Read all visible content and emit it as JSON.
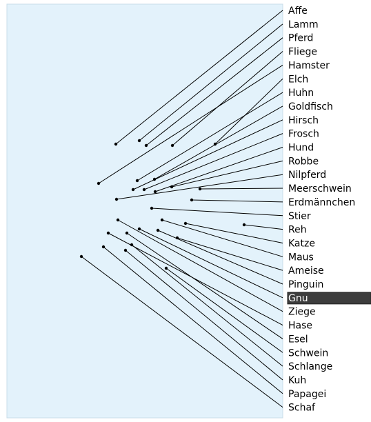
{
  "colors": {
    "panel": "#e3f2fb",
    "panel_border": "#c8dde8",
    "line": "#000000",
    "dot": "#000000",
    "selected_bg": "#3d3d3d",
    "selected_text": "#ffffff"
  },
  "selected_label": "Gnu",
  "labels": [
    "Affe",
    "Lamm",
    "Pferd",
    "Fliege",
    "Hamster",
    "Elch",
    "Huhn",
    "Goldfisch",
    "Hirsch",
    "Frosch",
    "Hund",
    "Robbe",
    "Nilpferd",
    "Meerschwein",
    "Erdmännchen",
    "Stier",
    "Reh",
    "Katze",
    "Maus",
    "Ameise",
    "Pinguin",
    "Gnu",
    "Ziege",
    "Hase",
    "Esel",
    "Schwein",
    "Schlange",
    "Kuh",
    "Papagei",
    "Schaf"
  ]
}
